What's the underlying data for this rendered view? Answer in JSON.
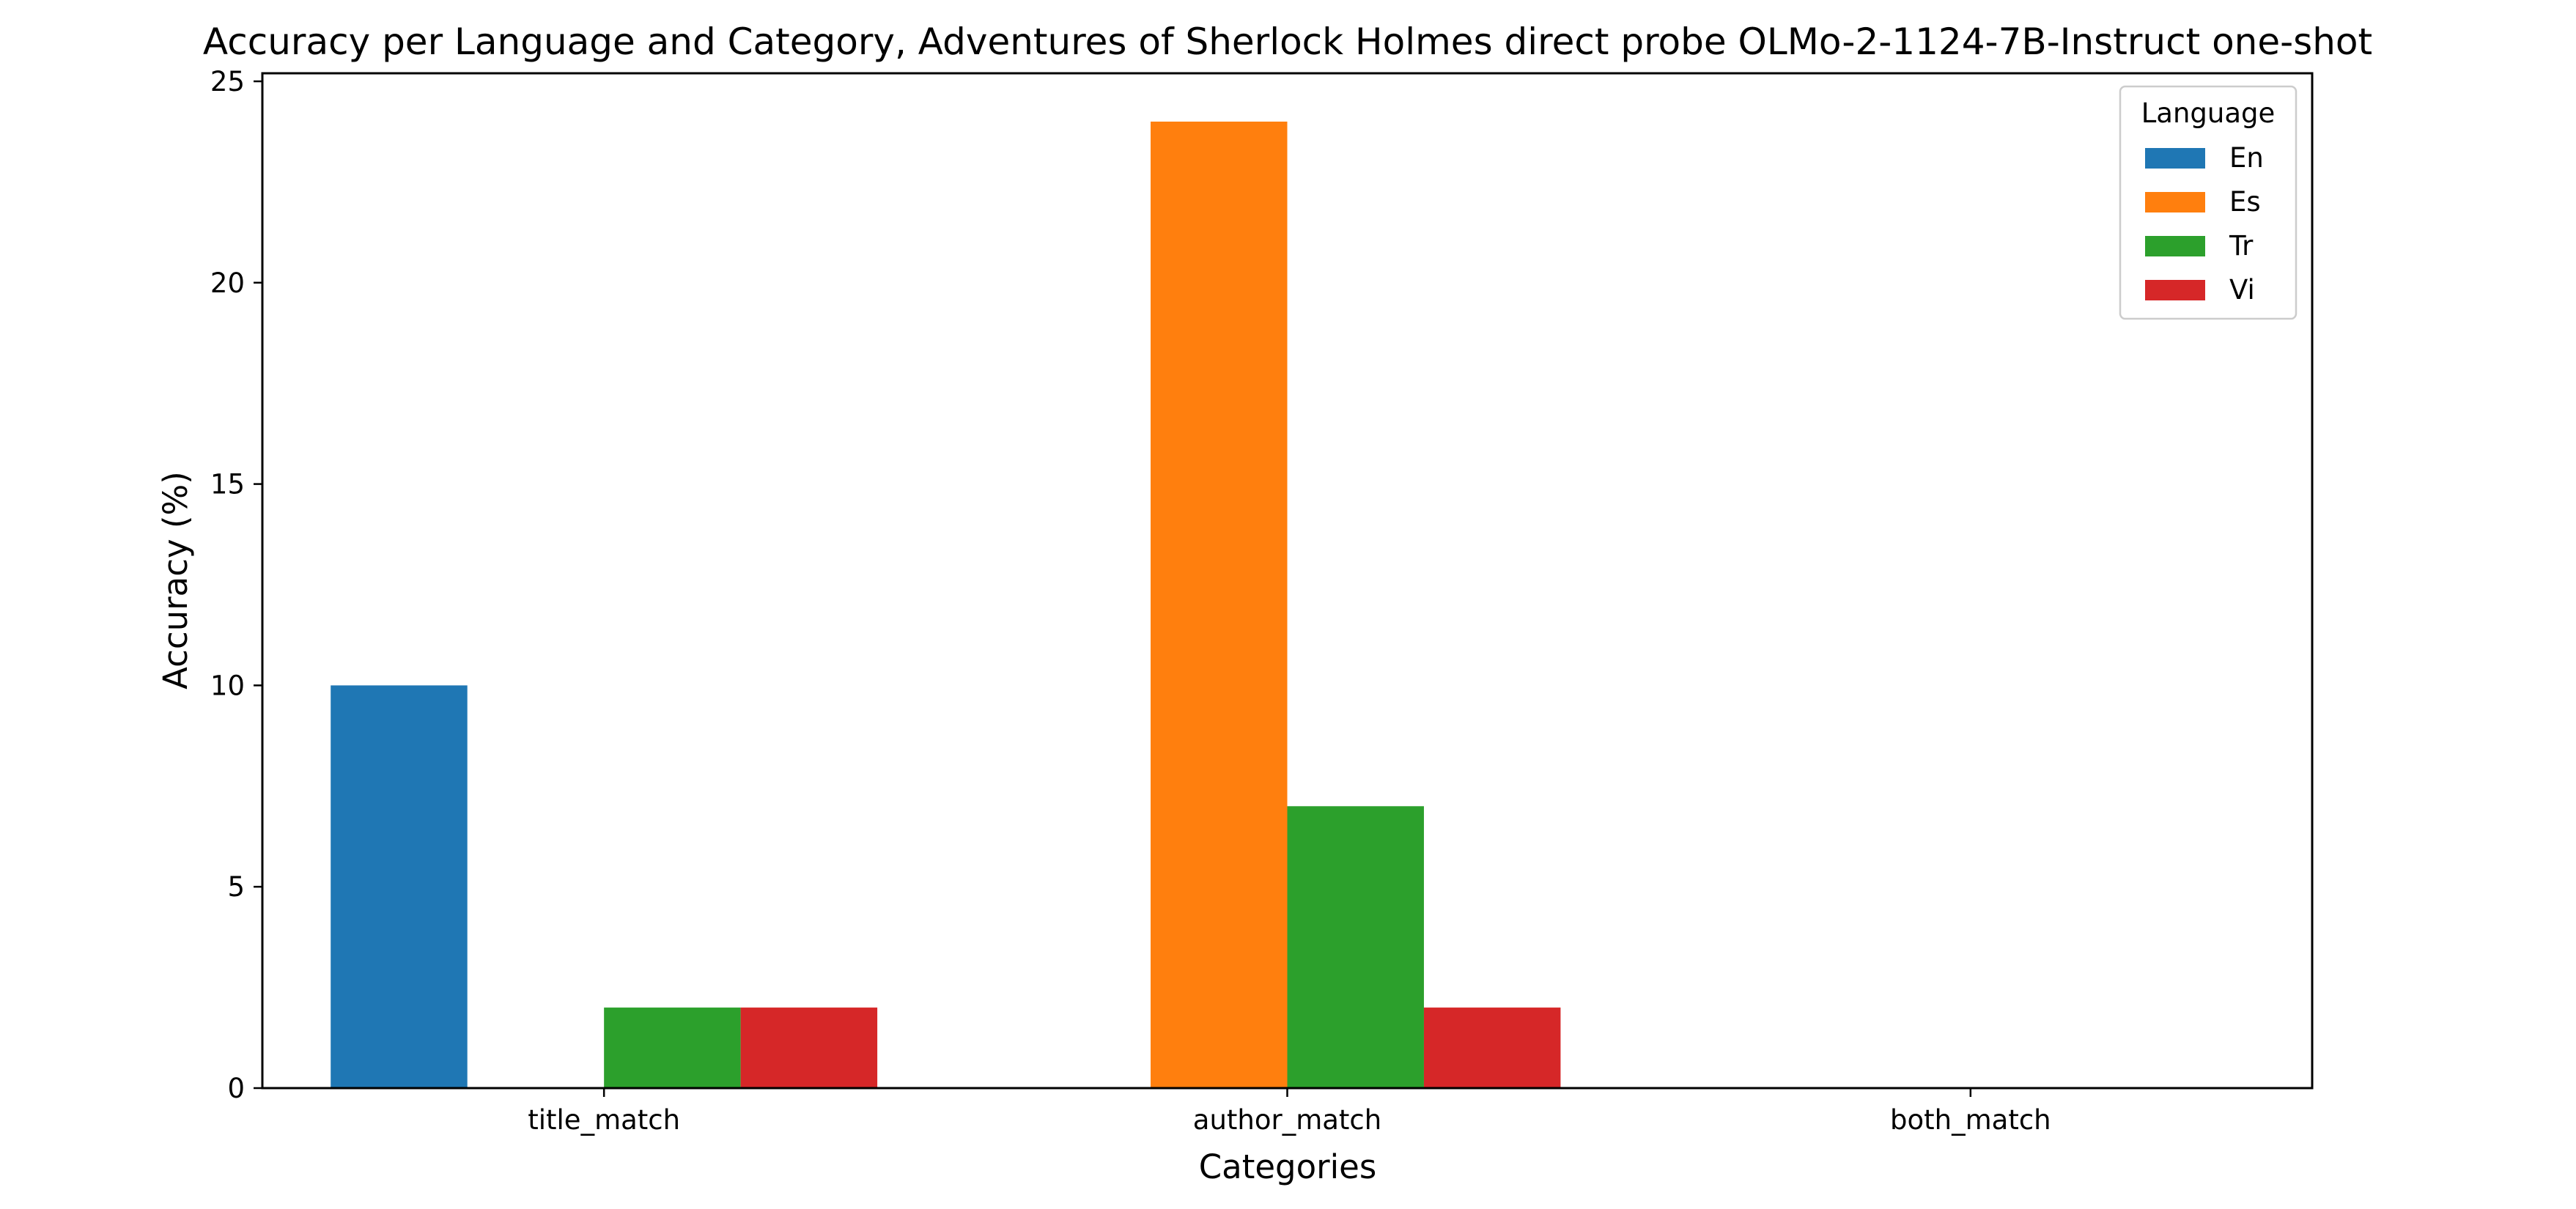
{
  "chart_data": {
    "type": "bar",
    "title": "Accuracy per Language and Category, Adventures of Sherlock Holmes direct probe OLMo-2-1124-7B-Instruct one-shot",
    "xlabel": "Categories",
    "ylabel": "Accuracy (%)",
    "categories": [
      "title_match",
      "author_match",
      "both_match"
    ],
    "series": [
      {
        "name": "En",
        "color": "#1f77b4",
        "values": [
          10,
          0,
          0
        ]
      },
      {
        "name": "Es",
        "color": "#ff7f0e",
        "values": [
          0,
          24,
          0
        ]
      },
      {
        "name": "Tr",
        "color": "#2ca02c",
        "values": [
          2,
          7,
          0
        ]
      },
      {
        "name": "Vi",
        "color": "#d62728",
        "values": [
          2,
          2,
          0
        ]
      }
    ],
    "ylim": [
      0,
      25.2
    ],
    "yticks": [
      0,
      5,
      10,
      15,
      20,
      25
    ],
    "legend": {
      "title": "Language",
      "position": "top-right"
    },
    "grid": false
  }
}
